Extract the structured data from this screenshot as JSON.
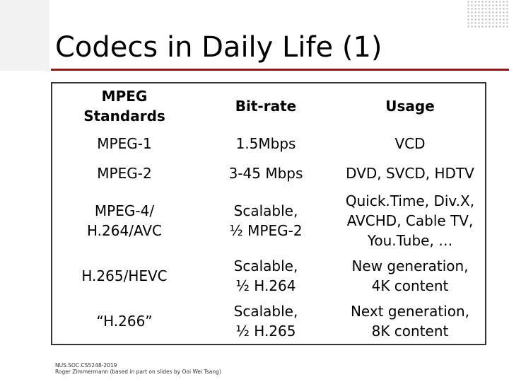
{
  "slide": {
    "title": "Codecs in Daily Life (1)",
    "footer_line1": "NUS.SOC.CS5248-2019",
    "footer_line2": "Roger Zimmermann (based in part on slides by Ooi Wei Tsang)"
  },
  "table": {
    "headers": [
      "MPEG\nStandards",
      "Bit-rate",
      "Usage"
    ],
    "rows": [
      [
        "MPEG-1",
        "1.5Mbps",
        "VCD"
      ],
      [
        "MPEG-2",
        "3-45 Mbps",
        "DVD, SVCD, HDTV"
      ],
      [
        "MPEG-4/\nH.264/AVC",
        "Scalable,\n½ MPEG-2",
        "Quick.Time, Div.X,\nAVCHD, Cable TV,\nYou.Tube, …"
      ],
      [
        "H.265/HEVC",
        "Scalable,\n½ H.264",
        "New generation,\n4K content"
      ],
      [
        "“H.266”",
        "Scalable,\n½ H.265",
        "Next generation,\n8K content"
      ]
    ]
  }
}
